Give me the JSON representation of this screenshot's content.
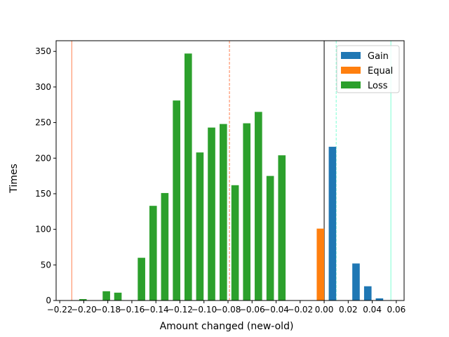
{
  "chart_data": {
    "type": "bar",
    "xlabel": "Amount changed (new-old)",
    "ylabel": "Times",
    "xlim": [
      -0.223,
      0.0665
    ],
    "ylim": [
      0,
      365
    ],
    "x_ticks": [
      -0.22,
      -0.2,
      -0.18,
      -0.16,
      -0.14,
      -0.12,
      -0.1,
      -0.08,
      -0.06,
      -0.04,
      -0.02,
      0.0,
      0.02,
      0.04,
      0.06
    ],
    "x_tick_labels": [
      "−0.22",
      "−0.20",
      "−0.18",
      "−0.16",
      "−0.14",
      "−0.12",
      "−0.10",
      "−0.08",
      "−0.06",
      "−0.04",
      "−0.02",
      "0.00",
      "0.02",
      "0.04",
      "0.06"
    ],
    "y_ticks": [
      0,
      50,
      100,
      150,
      200,
      250,
      300,
      350
    ],
    "y_tick_labels": [
      "0",
      "50",
      "100",
      "150",
      "200",
      "250",
      "300",
      "350"
    ],
    "bar_width": 0.0062,
    "grid": false,
    "legend_position": "top-right",
    "series": [
      {
        "name": "Gain",
        "color": "#1f77b4",
        "points": [
          {
            "x": 0.0069,
            "y": 216
          },
          {
            "x": 0.0265,
            "y": 52
          },
          {
            "x": 0.046,
            "y": 3
          },
          {
            "x": 0.0363,
            "y": 20
          }
        ]
      },
      {
        "name": "Equal",
        "color": "#ff7f0e",
        "points": [
          {
            "x": -0.0031,
            "y": 101
          }
        ]
      },
      {
        "name": "Loss",
        "color": "#2ca02c",
        "points": [
          {
            "x": -0.2007,
            "y": 2
          },
          {
            "x": -0.1812,
            "y": 13
          },
          {
            "x": -0.1716,
            "y": 11
          },
          {
            "x": -0.152,
            "y": 60
          },
          {
            "x": -0.1423,
            "y": 133
          },
          {
            "x": -0.1326,
            "y": 151
          },
          {
            "x": -0.1228,
            "y": 281
          },
          {
            "x": -0.1131,
            "y": 347
          },
          {
            "x": -0.1034,
            "y": 208
          },
          {
            "x": -0.0937,
            "y": 243
          },
          {
            "x": -0.0839,
            "y": 248
          },
          {
            "x": -0.0741,
            "y": 162
          },
          {
            "x": -0.0644,
            "y": 249
          },
          {
            "x": -0.0547,
            "y": 265
          },
          {
            "x": -0.0449,
            "y": 175
          },
          {
            "x": -0.0352,
            "y": 204
          }
        ]
      }
    ],
    "reference_lines": [
      {
        "x": -0.21,
        "color": "#ff7f50",
        "style": "solid"
      },
      {
        "x": -0.0788,
        "color": "#ff7f50",
        "style": "dashed"
      },
      {
        "x": 0.0,
        "color": "#000000",
        "style": "solid"
      },
      {
        "x": 0.01,
        "color": "#7fffd4",
        "style": "dashed"
      },
      {
        "x": 0.0555,
        "color": "#7fffd4",
        "style": "solid"
      }
    ]
  }
}
